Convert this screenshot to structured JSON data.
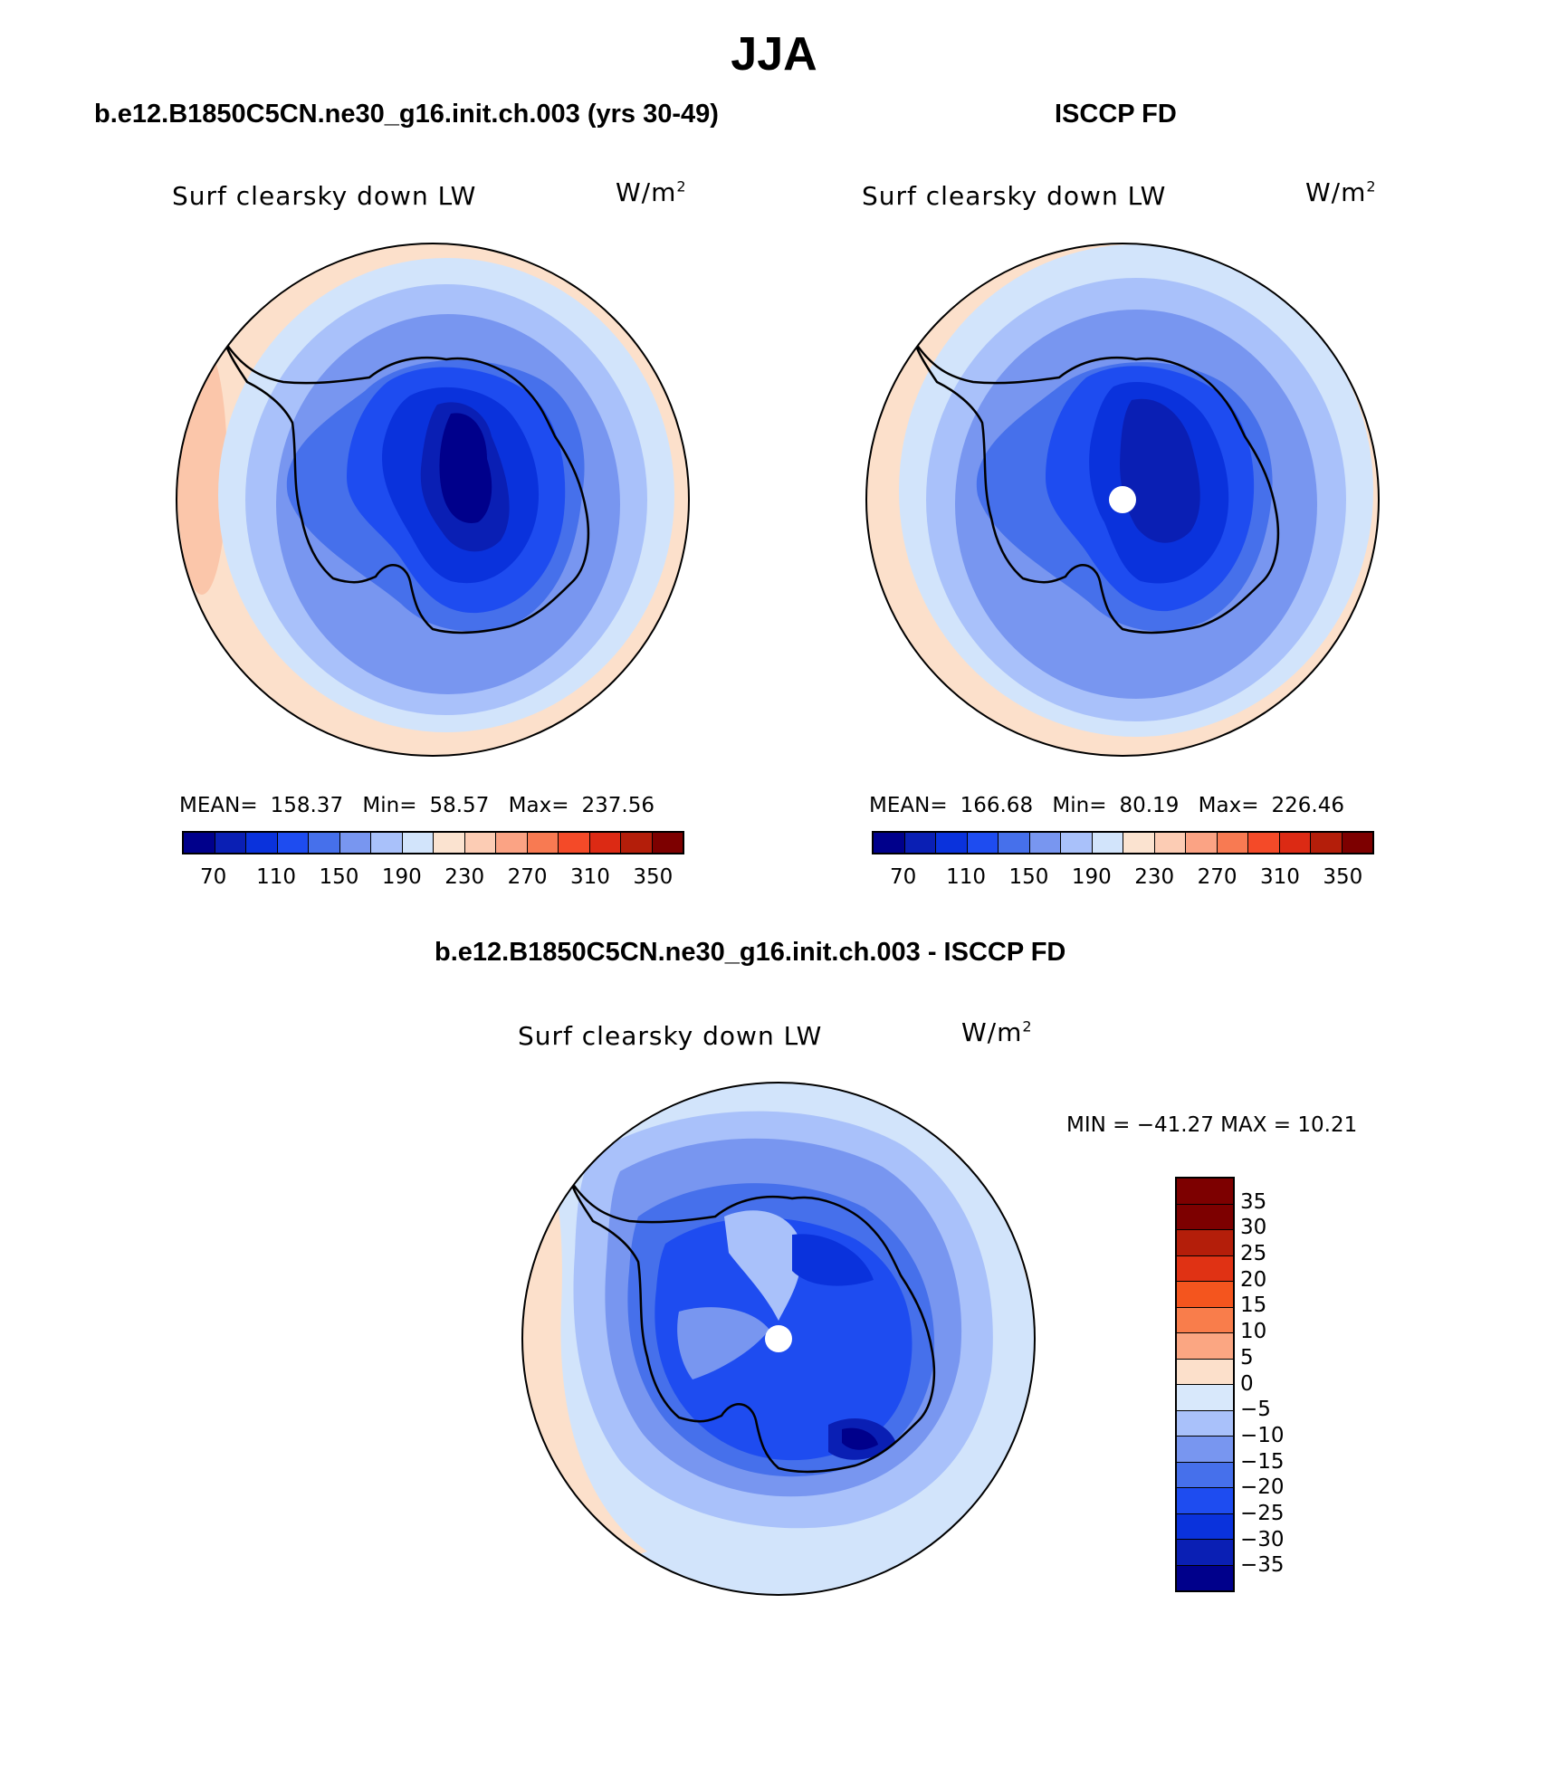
{
  "title": "JJA",
  "panels": {
    "model": {
      "header": "b.e12.B1850C5CN.ne30_g16.init.ch.003 (yrs 30-49)",
      "variable": "Surf clearsky down LW",
      "units": "W/m",
      "units_exp": "2",
      "stats": {
        "mean_label": "MEAN=",
        "mean": "158.37",
        "min_label": "Min=",
        "min": "58.57",
        "max_label": "Max=",
        "max": "237.56"
      }
    },
    "obs": {
      "header": "ISCCP FD",
      "variable": "Surf clearsky down LW",
      "units": "W/m",
      "units_exp": "2",
      "stats": {
        "mean_label": "MEAN=",
        "mean": "166.68",
        "min_label": "Min=",
        "min": "80.19",
        "max_label": "Max=",
        "max": "226.46"
      }
    },
    "diff": {
      "header": "b.e12.B1850C5CN.ne30_g16.init.ch.003 - ISCCP FD",
      "variable": "Surf clearsky down LW",
      "units": "W/m",
      "units_exp": "2",
      "minmax": "MIN = −41.27 MAX =   10.21"
    }
  },
  "colorbar_abs": {
    "colors": [
      "#00008b",
      "#0a1fb4",
      "#0a32dc",
      "#1e4cf0",
      "#4670eb",
      "#7896f0",
      "#a9c1fa",
      "#d2e4fb",
      "#fbe3d0",
      "#fcccb4",
      "#fba384",
      "#f87a52",
      "#f44a28",
      "#dc2a14",
      "#b41e0a",
      "#7d0000"
    ],
    "labels": [
      "70",
      "110",
      "150",
      "190",
      "230",
      "270",
      "310",
      "350"
    ]
  },
  "colorbar_diff": {
    "colors": [
      "#7d0000",
      "#b41e0a",
      "#e03214",
      "#f4551e",
      "#f97d4b",
      "#fba682",
      "#fce0cb",
      "#d8e8fb",
      "#a9c1fa",
      "#7896f0",
      "#4670eb",
      "#1e4cf0",
      "#0a32dc",
      "#0a1fb4",
      "#00008b"
    ],
    "labels": [
      "35",
      "30",
      "25",
      "20",
      "15",
      "10",
      "5",
      "0",
      "−5",
      "−10",
      "−15",
      "−20",
      "−25",
      "−30",
      "−35"
    ]
  },
  "map_colors": {
    "warm_edge": "#fce0cb",
    "warm2": "#fbc6aa",
    "light_blue": "#d2e4fb",
    "blue1": "#a9c1fa",
    "blue2": "#7896f0",
    "blue3": "#4670eb",
    "blue4": "#1e4cf0",
    "blue5": "#0a32dc",
    "blue6": "#0a1fb4",
    "blue7": "#00008b",
    "coast": "#000000"
  }
}
